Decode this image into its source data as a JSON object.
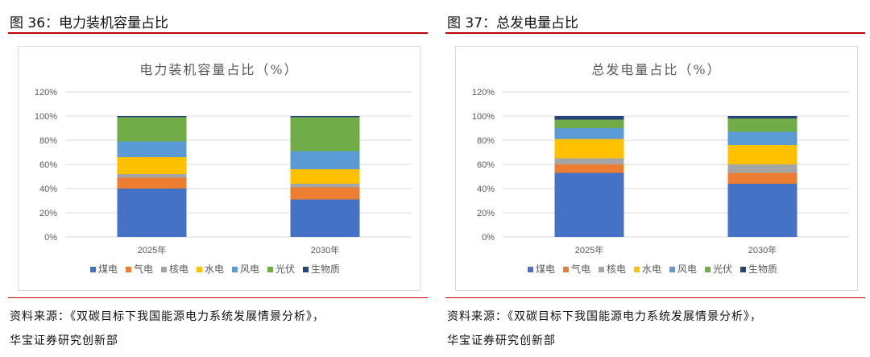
{
  "figures": [
    {
      "title": "图 36：电力装机容量占比",
      "source_line1": "资料来源：《双碳目标下我国能源电力系统发展情景分析》，",
      "source_line2": "华宝证券研究创新部"
    },
    {
      "title": "图 37：总发电量占比",
      "source_line1": "资料来源：《双碳目标下我国能源电力系统发展情景分析》，",
      "source_line2": "华宝证券研究创新部"
    }
  ],
  "chart_data": [
    {
      "type": "bar",
      "stacked": true,
      "title": "电力装机容量占比（%）",
      "categories": [
        "2025年",
        "2030年"
      ],
      "yticks": [
        "0%",
        "20%",
        "40%",
        "60%",
        "80%",
        "100%",
        "120%"
      ],
      "ylim": [
        0,
        120
      ],
      "legend_position": "bottom",
      "series": [
        {
          "name": "煤电",
          "values": [
            40,
            31
          ]
        },
        {
          "name": "气电",
          "values": [
            9,
            10
          ]
        },
        {
          "name": "核电",
          "values": [
            3,
            3
          ]
        },
        {
          "name": "水电",
          "values": [
            14,
            12
          ]
        },
        {
          "name": "风电",
          "values": [
            13,
            15
          ]
        },
        {
          "name": "光伏",
          "values": [
            20,
            28
          ]
        },
        {
          "name": "生物质",
          "values": [
            1,
            1
          ]
        }
      ]
    },
    {
      "type": "bar",
      "stacked": true,
      "title": "总发电量占比（%）",
      "categories": [
        "2025年",
        "2030年"
      ],
      "yticks": [
        "0%",
        "20%",
        "40%",
        "60%",
        "80%",
        "100%",
        "120%"
      ],
      "ylim": [
        0,
        120
      ],
      "legend_position": "bottom",
      "series": [
        {
          "name": "煤电",
          "values": [
            53,
            44
          ]
        },
        {
          "name": "气电",
          "values": [
            7,
            9
          ]
        },
        {
          "name": "核电",
          "values": [
            5,
            7
          ]
        },
        {
          "name": "水电",
          "values": [
            16,
            16
          ]
        },
        {
          "name": "风电",
          "values": [
            9,
            11
          ]
        },
        {
          "name": "光伏",
          "values": [
            7,
            11
          ]
        },
        {
          "name": "生物质",
          "values": [
            3,
            2
          ]
        }
      ]
    }
  ],
  "colors": {
    "series": [
      "#4472c4",
      "#ed7d31",
      "#a5a5a5",
      "#ffc000",
      "#5b9bd5",
      "#70ad47",
      "#264478"
    ],
    "accent_rule": "#c00000"
  }
}
